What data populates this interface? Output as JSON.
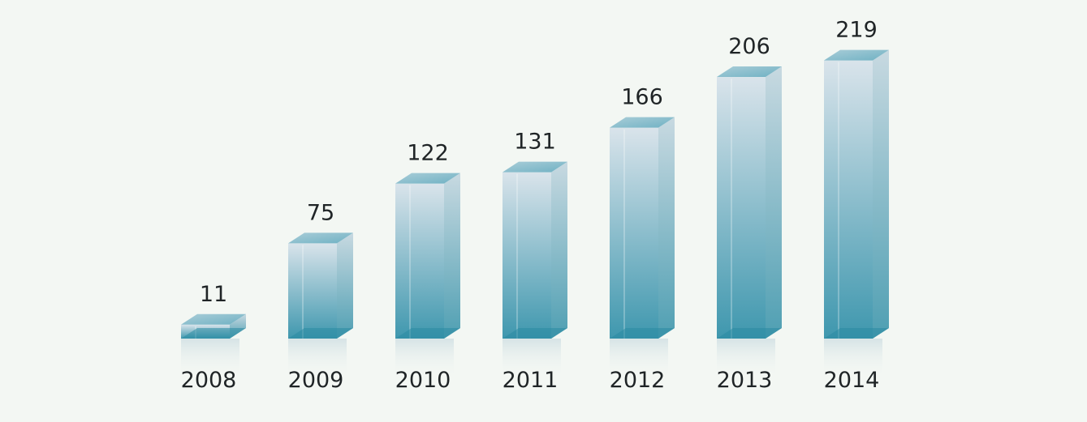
{
  "chart_data": {
    "type": "bar",
    "categories": [
      "2008",
      "2009",
      "2010",
      "2011",
      "2012",
      "2013",
      "2014"
    ],
    "values": [
      11,
      75,
      122,
      131,
      166,
      206,
      219
    ],
    "value_labels": [
      "11",
      "75",
      "122",
      "131",
      "166",
      "206",
      "219"
    ],
    "title": "",
    "xlabel": "",
    "ylabel": "",
    "ylim": [
      0,
      220
    ],
    "grid": false,
    "legend": "none",
    "style": "3d-glass-bars",
    "colors": {
      "background": "#f3f7f3",
      "bar_top": "#d7e2ea",
      "bar_bottom": "#2f8fa8",
      "bar_side": "#5aa7bb",
      "cap": "#7fb8c7",
      "text": "#1f2426"
    }
  }
}
